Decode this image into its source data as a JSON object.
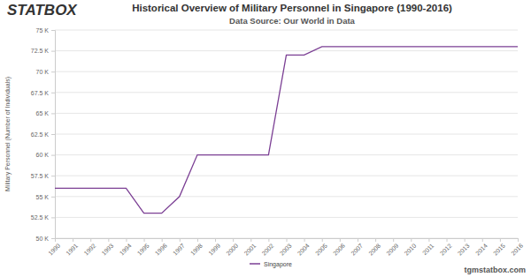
{
  "chart_data": {
    "type": "line",
    "title": "Historical Overview of Military Personnel in Singapore (1990-2016)",
    "subtitle": "Data Source: Our World in Data",
    "logo": "STATBOX",
    "footer": "tgmstatbox.com",
    "ylabel": "Military Personnel (Number of Individuals)",
    "categories": [
      "1990",
      "1991",
      "1992",
      "1993",
      "1994",
      "1995",
      "1996",
      "1997",
      "1998",
      "1999",
      "2000",
      "2001",
      "2002",
      "2003",
      "2004",
      "2005",
      "2006",
      "2007",
      "2008",
      "2009",
      "2010",
      "2011",
      "2012",
      "2013",
      "2014",
      "2015",
      "2016"
    ],
    "series": [
      {
        "name": "Singapore",
        "color": "#7b3f94",
        "values": [
          56000,
          56000,
          56000,
          56000,
          56000,
          53000,
          53000,
          55000,
          60000,
          60000,
          60000,
          60000,
          60000,
          72000,
          72000,
          73000,
          73000,
          73000,
          73000,
          73000,
          73000,
          73000,
          73000,
          73000,
          73000,
          73000,
          73000
        ]
      }
    ],
    "ylim": [
      50000,
      75000
    ],
    "yticks": [
      {
        "value": 50000,
        "label": "50 K"
      },
      {
        "value": 52500,
        "label": "52.5 K"
      },
      {
        "value": 55000,
        "label": "55 K"
      },
      {
        "value": 57500,
        "label": "57.5 K"
      },
      {
        "value": 60000,
        "label": "60 K"
      },
      {
        "value": 62500,
        "label": "62.5 K"
      },
      {
        "value": 65000,
        "label": "65 K"
      },
      {
        "value": 67500,
        "label": "67.5 K"
      },
      {
        "value": 70000,
        "label": "70 K"
      },
      {
        "value": 72500,
        "label": "72.5 K"
      },
      {
        "value": 75000,
        "label": "75 K"
      }
    ],
    "grid": true,
    "legend": "bottom"
  }
}
